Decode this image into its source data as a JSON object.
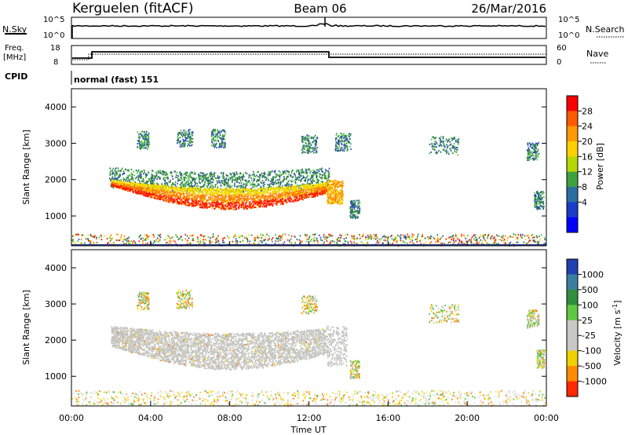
{
  "header": {
    "station": "Kerguelen (fitACF)",
    "beam": "Beam 06",
    "date": "26/Mar/2016"
  },
  "strip_panels": {
    "nsky": {
      "label": "N.Sky",
      "right_label": "N.Search",
      "left_ticks": [
        "10^5",
        "10^0"
      ],
      "right_ticks": [
        "10^5",
        "10^0"
      ]
    },
    "freq": {
      "label_line1": "Freq.",
      "label_line2": "[MHz]",
      "right_label": "Nave",
      "left_ticks": [
        "18",
        "8"
      ],
      "right_ticks": [
        "60",
        "0"
      ]
    },
    "cpid": {
      "label": "CPID",
      "text": "normal (fast) 151"
    }
  },
  "colors": {
    "red": "#ff1a00",
    "orange": "#ff7f00",
    "yellow": "#f5d800",
    "green": "#4cc23c",
    "darkgreen": "#2a7f3c",
    "blue": "#2f4bb8",
    "gray": "#c4c4c0",
    "lightgray": "#dcdcd8"
  },
  "chart_data": [
    {
      "type": "heatmap",
      "name": "power",
      "xlabel": "",
      "ylabel": "Slant Range [km]",
      "y_ticks": [
        "4000",
        "3000",
        "2000",
        "1000"
      ],
      "x_range_hours": [
        0,
        24
      ],
      "y_range_km": [
        180,
        4500
      ],
      "colorbar": {
        "label": "Power [dB]",
        "ticks": [
          "28",
          "24",
          "20",
          "16",
          "12",
          "8",
          "4"
        ],
        "colors": [
          "#ff0000",
          "#ff5a00",
          "#ff9900",
          "#ffd000",
          "#b5d800",
          "#3fa040",
          "#2a6fa0",
          "#1a3cc8",
          "#0000ff"
        ]
      },
      "echo_regions": [
        {
          "feature": "main band",
          "t_start": 2.0,
          "t_end": 12.9,
          "range_km": [
            1100,
            2000
          ],
          "power_db": [
            20,
            30
          ]
        },
        {
          "feature": "outer band",
          "t_start": 1.9,
          "t_end": 13.0,
          "range_km": [
            1800,
            2400
          ],
          "power_db": [
            10,
            18
          ]
        },
        {
          "feature": "late patch",
          "t_start": 12.9,
          "t_end": 13.6,
          "range_km": [
            1400,
            2000
          ],
          "power_db": [
            16,
            24
          ]
        },
        {
          "feature": "near range clutter",
          "t_start": 0.0,
          "t_end": 24.0,
          "range_km": [
            180,
            500
          ],
          "power_db": [
            4,
            20
          ]
        }
      ]
    },
    {
      "type": "heatmap",
      "name": "velocity",
      "xlabel": "Time UT",
      "ylabel": "Slant Range [km]",
      "y_ticks": [
        "4000",
        "3000",
        "2000",
        "1000"
      ],
      "x_ticks": [
        "00:00",
        "04:00",
        "08:00",
        "12:00",
        "16:00",
        "20:00",
        "00:00"
      ],
      "x_range_hours": [
        0,
        24
      ],
      "y_range_km": [
        180,
        4500
      ],
      "colorbar": {
        "label": "Velocity [m s",
        "label_sup": "-1",
        "label_end": "]",
        "ticks": [
          "1000",
          "500",
          "100",
          "25",
          "-25",
          "-100",
          "-500",
          "-1000"
        ],
        "colors": [
          "#2040b0",
          "#3b7fa0",
          "#2f8f3c",
          "#5ec840",
          "#c8c8c4",
          "#c8c8c4",
          "#f0d000",
          "#ff8c00",
          "#ff2800"
        ]
      },
      "echo_regions": [
        {
          "feature": "main band (ground scatter)",
          "t_start": 2.0,
          "t_end": 12.9,
          "range_km": [
            1400,
            2400
          ],
          "velocity_ms": [
            -25,
            25
          ]
        },
        {
          "feature": "near range",
          "t_start": 0.0,
          "t_end": 24.0,
          "range_km": [
            180,
            600
          ],
          "velocity_ms": [
            -100,
            100
          ]
        }
      ]
    }
  ]
}
